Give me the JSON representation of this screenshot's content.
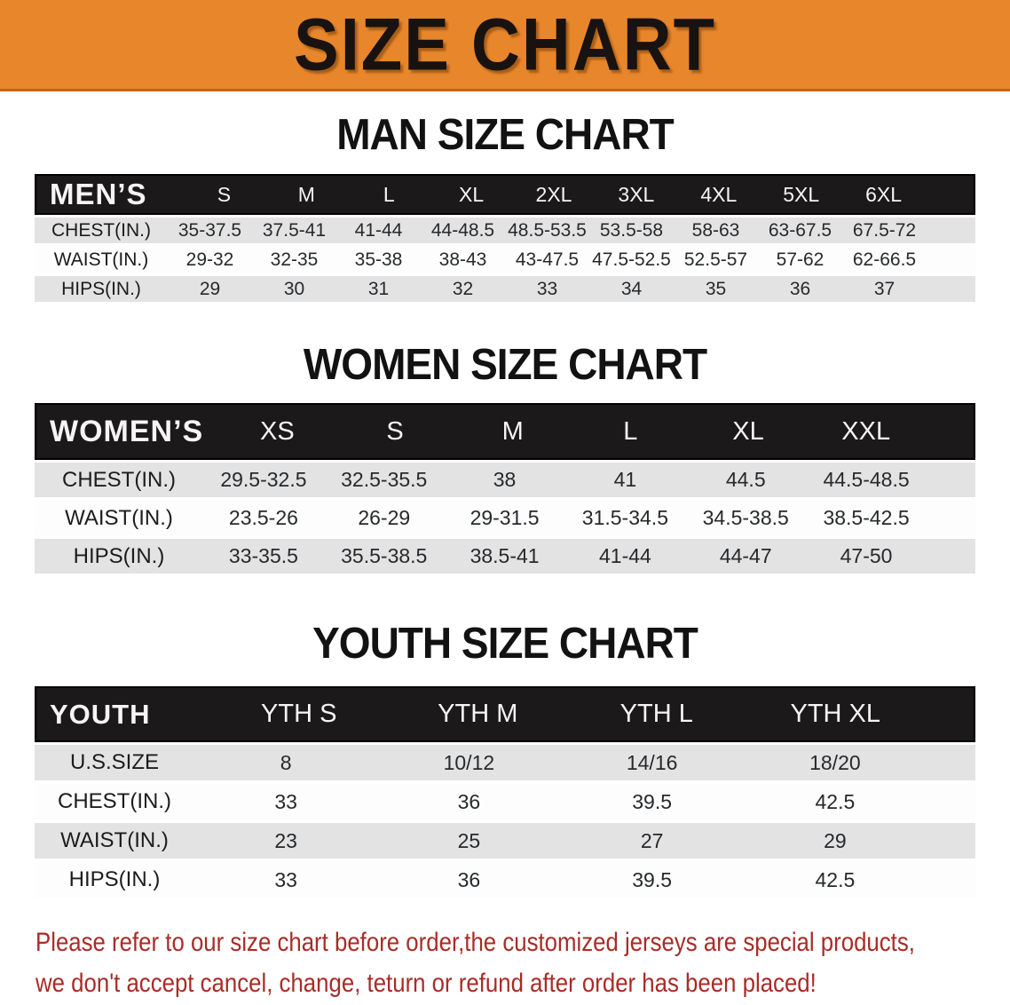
{
  "banner": {
    "title": "SIZE CHART"
  },
  "colors": {
    "banner_orange": "#E8862B",
    "banner_border": "#BE6620",
    "header_black": "#1B1919",
    "row_gray": "#E3E3E4",
    "row_white": "#FDFDFD",
    "disclaimer_red": "#A82C27"
  },
  "sections": [
    {
      "heading": "MAN SIZE CHART",
      "table": {
        "label": "MEN’S",
        "columns": [
          "S",
          "M",
          "L",
          "XL",
          "2XL",
          "3XL",
          "4XL",
          "5XL",
          "6XL"
        ],
        "rows": [
          {
            "label": "CHEST(IN.)",
            "values": [
              "35-37.5",
              "37.5-41",
              "41-44",
              "44-48.5",
              "48.5-53.5",
              "53.5-58",
              "58-63",
              "63-67.5",
              "67.5-72"
            ]
          },
          {
            "label": "WAIST(IN.)",
            "values": [
              "29-32",
              "32-35",
              "35-38",
              "38-43",
              "43-47.5",
              "47.5-52.5",
              "52.5-57",
              "57-62",
              "62-66.5"
            ]
          },
          {
            "label": "HIPS(IN.)",
            "values": [
              "29",
              "30",
              "31",
              "32",
              "33",
              "34",
              "35",
              "36",
              "37"
            ]
          }
        ]
      }
    },
    {
      "heading": "WOMEN SIZE CHART",
      "table": {
        "label": "WOMEN’S",
        "columns": [
          "XS",
          "S",
          "M",
          "L",
          "XL",
          "XXL"
        ],
        "rows": [
          {
            "label": "CHEST(IN.)",
            "values": [
              "29.5-32.5",
              "32.5-35.5",
              "38",
              "41",
              "44.5",
              "44.5-48.5"
            ]
          },
          {
            "label": "WAIST(IN.)",
            "values": [
              "23.5-26",
              "26-29",
              "29-31.5",
              "31.5-34.5",
              "34.5-38.5",
              "38.5-42.5"
            ]
          },
          {
            "label": "HIPS(IN.)",
            "values": [
              "33-35.5",
              "35.5-38.5",
              "38.5-41",
              "41-44",
              "44-47",
              "47-50"
            ]
          }
        ]
      }
    },
    {
      "heading": "YOUTH SIZE CHART",
      "table": {
        "label": "YOUTH",
        "columns": [
          "YTH S",
          "YTH M",
          "YTH L",
          "YTH XL"
        ],
        "rows": [
          {
            "label": "U.S.SIZE",
            "values": [
              "8",
              "10/12",
              "14/16",
              "18/20"
            ]
          },
          {
            "label": "CHEST(IN.)",
            "values": [
              "33",
              "36",
              "39.5",
              "42.5"
            ]
          },
          {
            "label": "WAIST(IN.)",
            "values": [
              "23",
              "25",
              "27",
              "29"
            ]
          },
          {
            "label": "HIPS(IN.)",
            "values": [
              "33",
              "36",
              "39.5",
              "42.5"
            ]
          }
        ]
      }
    }
  ],
  "disclaimer": {
    "line1": "Please refer to our size chart before order,the customized jerseys are special products,",
    "line2": "we don't accept cancel, change, teturn or refund after order has been placed!"
  }
}
